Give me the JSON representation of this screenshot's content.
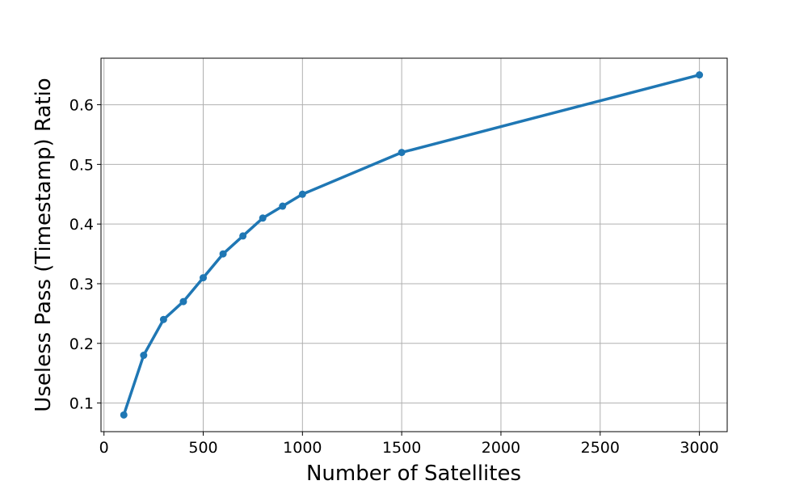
{
  "chart_data": {
    "type": "line",
    "title": "",
    "xlabel": "Number of Satellites",
    "ylabel": "Useless Pass (Timestamp) Ratio",
    "xlim": [
      -15,
      3140
    ],
    "ylim": [
      0.052,
      0.678
    ],
    "xticks": [
      0,
      500,
      1000,
      1500,
      2000,
      2500,
      3000
    ],
    "yticks": [
      0.1,
      0.2,
      0.3,
      0.4,
      0.5,
      0.6
    ],
    "grid": true,
    "series": [
      {
        "color": "#1f77b4",
        "marker": "circle",
        "x": [
          100,
          200,
          300,
          400,
          500,
          600,
          700,
          800,
          900,
          1000,
          1500,
          3000
        ],
        "y": [
          0.08,
          0.18,
          0.24,
          0.27,
          0.31,
          0.35,
          0.38,
          0.41,
          0.43,
          0.45,
          0.52,
          0.65
        ]
      }
    ]
  }
}
